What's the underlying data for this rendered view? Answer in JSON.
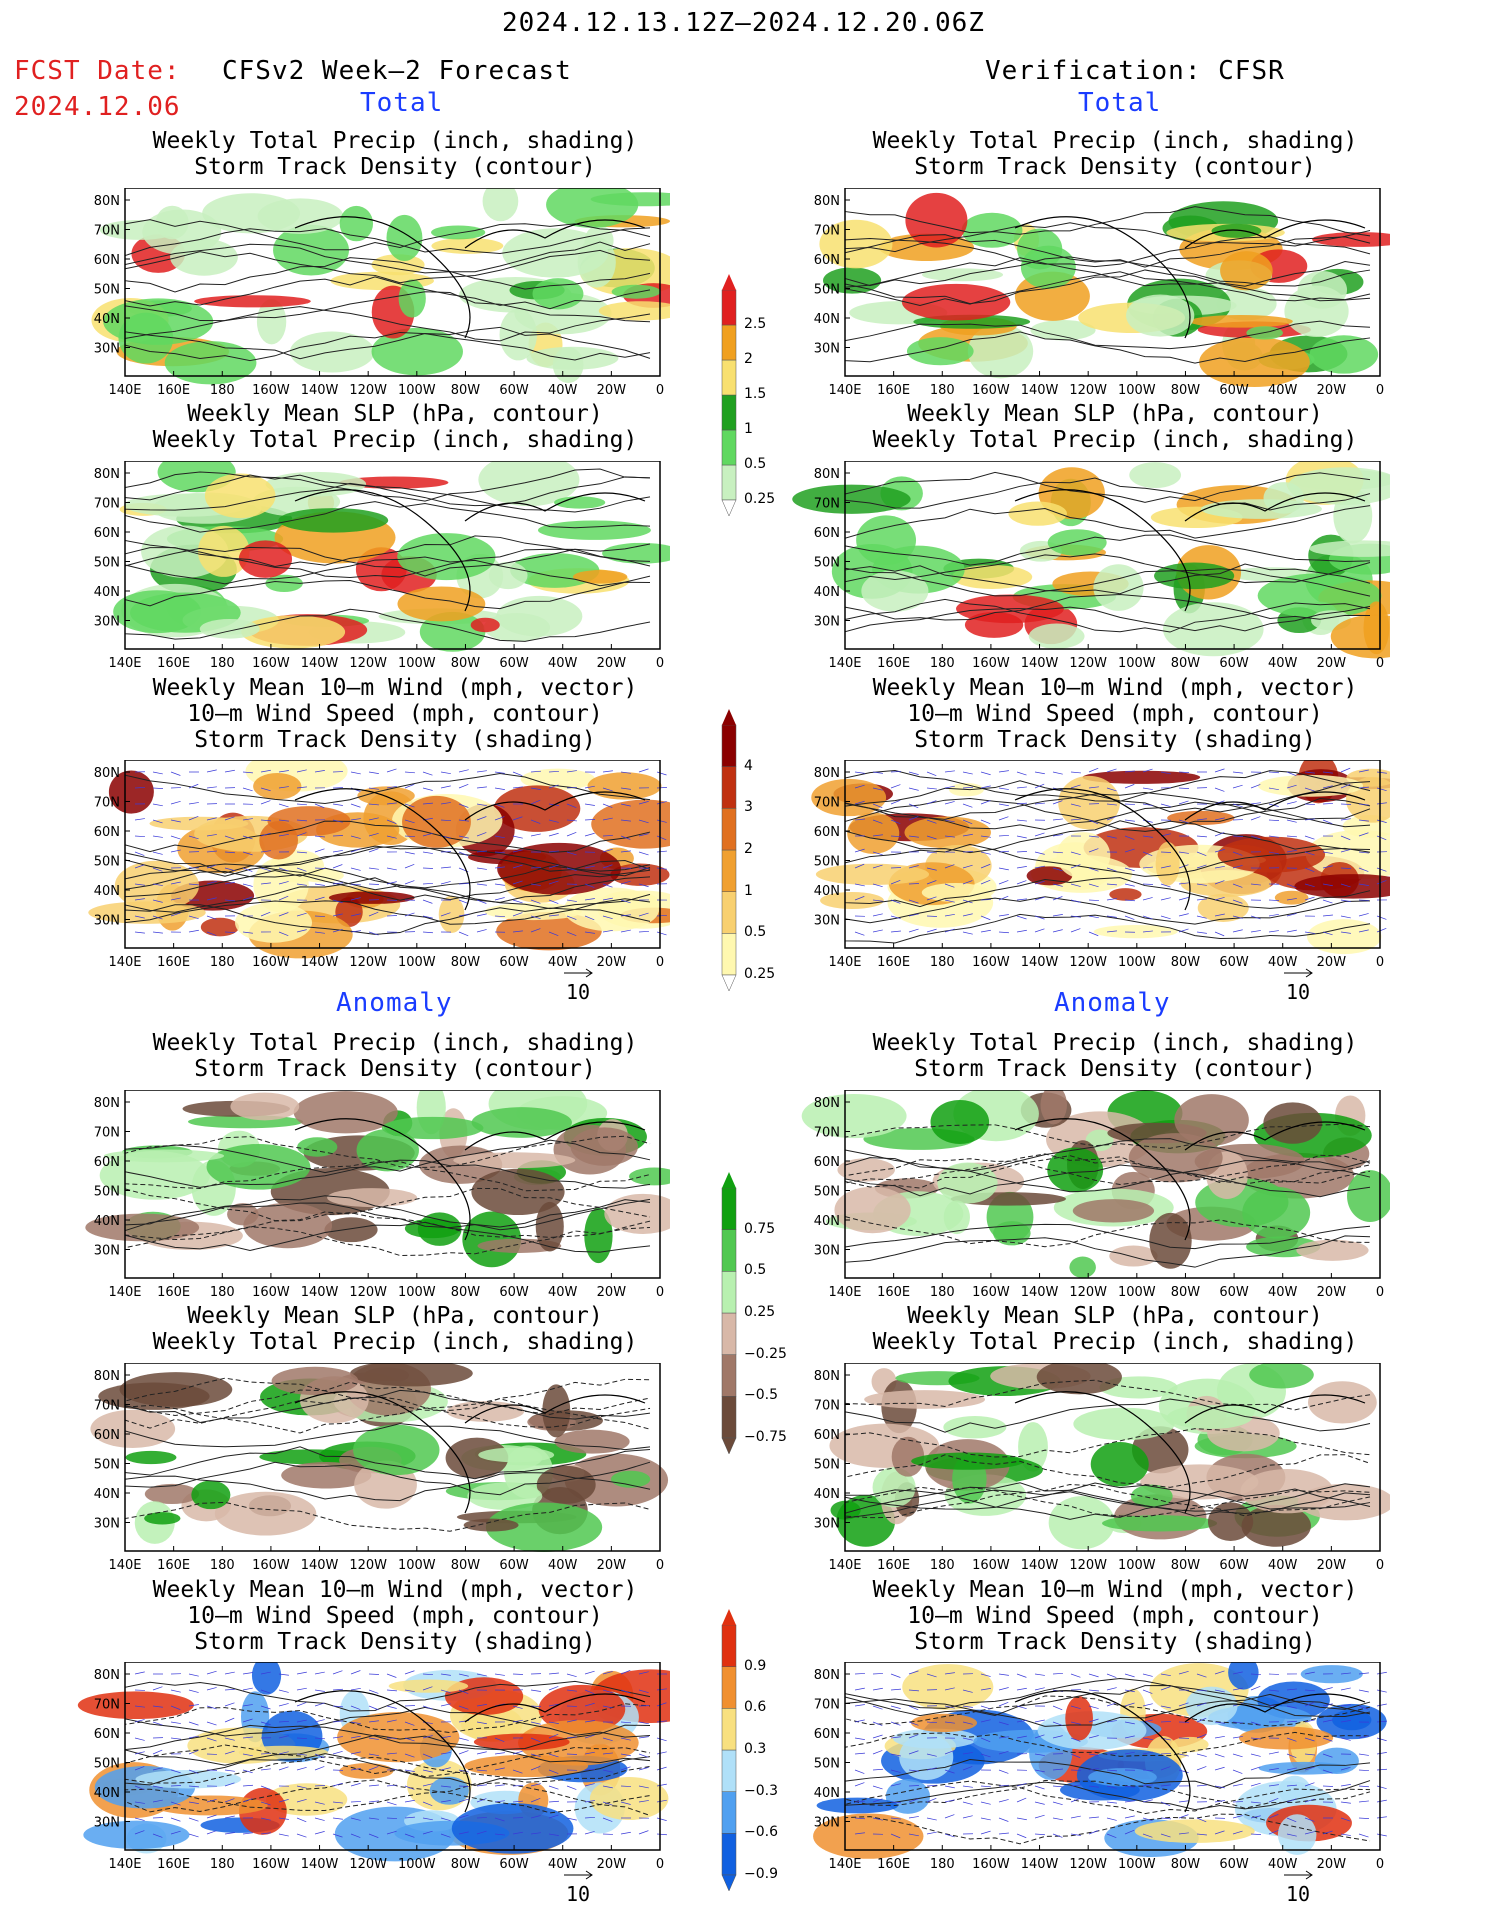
{
  "header": {
    "date_range": "2024.12.13.12Z—2024.12.20.06Z",
    "fcst_date_label": "FCST Date:",
    "fcst_date_value": "2024.12.06",
    "left_title": "CFSv2 Week—2 Forecast",
    "right_title": "Verification: CFSR"
  },
  "sections": {
    "total": "Total",
    "anomaly": "Anomaly"
  },
  "panel_titles": {
    "precip_storm": [
      "Weekly Total Precip (inch, shading)",
      "Storm Track Density (contour)"
    ],
    "slp_precip": [
      "Weekly Mean SLP (hPa, contour)",
      "Weekly Total Precip (inch, shading)"
    ],
    "wind_storm": [
      "Weekly Mean 10—m Wind (mph, vector)",
      "10—m Wind Speed (mph, contour)",
      "Storm Track Density (shading)"
    ]
  },
  "axis": {
    "lon_labels": [
      "140E",
      "160E",
      "180",
      "160W",
      "140W",
      "120W",
      "100W",
      "80W",
      "60W",
      "40W",
      "20W",
      "0"
    ],
    "lat_labels": [
      "80N",
      "70N",
      "60N",
      "50N",
      "40N",
      "30N"
    ]
  },
  "vector_ref": "10",
  "colorbars": {
    "precip_total": [
      "0.25",
      "0.5",
      "1",
      "1.5",
      "2",
      "2.5"
    ],
    "storm_total": [
      "0.25",
      "0.5",
      "1",
      "2",
      "3",
      "4"
    ],
    "precip_anom": [
      "−0.75",
      "−0.5",
      "−0.25",
      "0.25",
      "0.5",
      "0.75"
    ],
    "storm_anom": [
      "−0.9",
      "−0.6",
      "−0.3",
      "0.3",
      "0.6",
      "0.9"
    ]
  },
  "colors": {
    "precip_total": [
      "#c8f0c0",
      "#60d860",
      "#20a020",
      "#f8e070",
      "#f0a020",
      "#e02020"
    ],
    "storm_total": [
      "#fff8b0",
      "#f8d070",
      "#f0a030",
      "#e07020",
      "#c03010",
      "#8b0000"
    ],
    "precip_anom": [
      "#6b4a3a",
      "#a07868",
      "#d8b8a8",
      "#b8f0b0",
      "#50c850",
      "#10a010"
    ],
    "storm_anom": [
      "#1060e0",
      "#50a0f0",
      "#b0e0f8",
      "#f8e080",
      "#f09030",
      "#e03010"
    ]
  }
}
